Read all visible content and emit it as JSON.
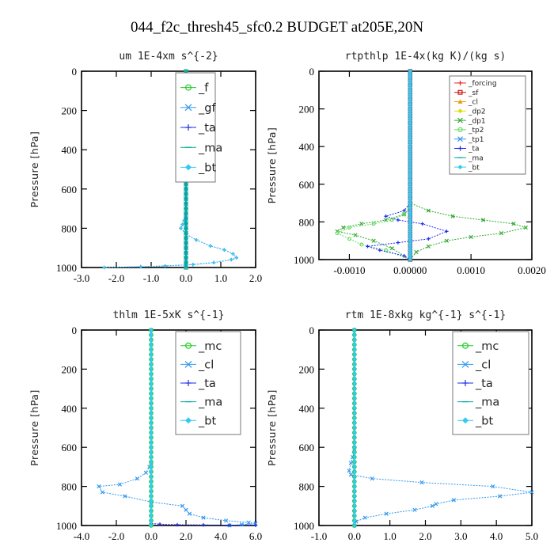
{
  "figure_title": "044_f2c_thresh45_sfc0.2  BUDGET at205E,20N",
  "chart_data": [
    {
      "type": "line",
      "title": "um  1E-4xm s^{-2}",
      "ylabel": "Pressure [hPa]",
      "xlim": [
        -3.0,
        2.0
      ],
      "ylim": [
        1000,
        0
      ],
      "xticks": [
        "-3.0",
        "-2.0",
        "-1.0",
        "0.0",
        "1.0",
        "2.0"
      ],
      "yticks": [
        "0",
        "200",
        "400",
        "600",
        "800",
        "1000"
      ],
      "legend_position": "top-right",
      "series": [
        {
          "name": "_f",
          "color": "#22cc22",
          "marker": "circle",
          "x": [
            0,
            0,
            0,
            0,
            0,
            0,
            0,
            0,
            0,
            0,
            0,
            0,
            0
          ],
          "y": [
            0,
            80,
            160,
            240,
            320,
            400,
            480,
            560,
            640,
            720,
            800,
            900,
            1000
          ]
        },
        {
          "name": "_gf",
          "color": "#3399ee",
          "marker": "x",
          "x": [
            0,
            0,
            0,
            0,
            0,
            0,
            0,
            0,
            0,
            0,
            0,
            0,
            0
          ],
          "y": [
            0,
            80,
            160,
            240,
            320,
            400,
            480,
            560,
            640,
            720,
            800,
            900,
            1000
          ]
        },
        {
          "name": "_ta",
          "color": "#1a2aee",
          "marker": "plus",
          "x": [
            0,
            0,
            0,
            -0.05,
            -0.1,
            -0.15,
            0.0,
            0.3,
            0.7,
            1.1,
            1.35,
            1.45,
            1.3,
            0.8,
            0.2,
            -0.6,
            -1.3,
            -2.35
          ],
          "y": [
            0,
            500,
            700,
            760,
            780,
            800,
            830,
            860,
            890,
            910,
            930,
            950,
            960,
            975,
            985,
            992,
            996,
            1000
          ]
        },
        {
          "name": "_ma",
          "color": "#00aa99",
          "marker": "dash",
          "x": [
            0,
            0,
            0,
            0,
            0,
            0
          ],
          "y": [
            0,
            200,
            400,
            600,
            800,
            1000
          ]
        },
        {
          "name": "_bt",
          "color": "#33ccee",
          "marker": "diamond",
          "x": [
            0,
            0,
            0,
            -0.05,
            -0.1,
            -0.15,
            0.0,
            0.3,
            0.7,
            1.1,
            1.35,
            1.45,
            1.3,
            0.8,
            0.2,
            -0.6,
            -1.3,
            -2.35
          ],
          "y": [
            0,
            500,
            700,
            760,
            780,
            800,
            830,
            860,
            890,
            910,
            930,
            950,
            960,
            975,
            985,
            992,
            996,
            1000
          ]
        }
      ]
    },
    {
      "type": "line",
      "title": "rtpthlp  1E-4x(kg K)/(kg s)",
      "ylabel": "Pressure [hPa]",
      "xlim": [
        -0.0015,
        0.002
      ],
      "ylim": [
        1000,
        0
      ],
      "xticks": [
        "-0.0010",
        "0.00000",
        "0.0010",
        "0.0020"
      ],
      "xtick_values": [
        -0.001,
        0.0,
        0.001,
        0.002
      ],
      "yticks": [
        "0",
        "200",
        "400",
        "600",
        "800",
        "1000"
      ],
      "legend_position": "top-right",
      "series": [
        {
          "name": "_forcing",
          "color": "#ee2222",
          "marker": "plus",
          "x": [
            0,
            0,
            0,
            0,
            0,
            0,
            0,
            0,
            0,
            0,
            0
          ],
          "y": [
            0,
            100,
            200,
            300,
            400,
            500,
            600,
            700,
            800,
            900,
            1000
          ]
        },
        {
          "name": "_sf",
          "color": "#cc1111",
          "marker": "square",
          "x": [
            0,
            0,
            0,
            0,
            0,
            0,
            0,
            0,
            0,
            0,
            0
          ],
          "y": [
            0,
            100,
            200,
            300,
            400,
            500,
            600,
            700,
            800,
            900,
            1000
          ]
        },
        {
          "name": "_cl",
          "color": "#ee9900",
          "marker": "triangle",
          "x": [
            0,
            0,
            0,
            0,
            0,
            0,
            0,
            0,
            0,
            0,
            0
          ],
          "y": [
            0,
            100,
            200,
            300,
            400,
            500,
            600,
            700,
            800,
            900,
            1000
          ]
        },
        {
          "name": "_dp2",
          "color": "#dddd00",
          "marker": "diamond",
          "x": [
            0,
            0,
            0,
            0,
            0,
            0,
            0,
            0,
            0,
            0,
            0
          ],
          "y": [
            0,
            100,
            200,
            300,
            400,
            500,
            600,
            700,
            800,
            900,
            1000
          ]
        },
        {
          "name": "_dp1",
          "color": "#33aa33",
          "marker": "x",
          "x": [
            0,
            0,
            -0.0001,
            -0.0004,
            -0.0008,
            -0.0011,
            -0.0012,
            -0.0009,
            -0.0006,
            -0.0003,
            0.0
          ],
          "y": [
            0,
            720,
            760,
            790,
            810,
            830,
            850,
            870,
            900,
            940,
            1000
          ]
        },
        {
          "name": "_tp2",
          "color": "#66dd66",
          "marker": "circle",
          "x": [
            0,
            0,
            -0.0001,
            -0.0003,
            -0.0006,
            -0.001,
            -0.0012,
            -0.001,
            -0.0008,
            -0.0004,
            0.0
          ],
          "y": [
            0,
            730,
            760,
            790,
            810,
            830,
            860,
            890,
            920,
            950,
            1000
          ]
        },
        {
          "name": "_tp1",
          "color": "#3399ee",
          "marker": "x",
          "x": [
            0,
            0,
            0,
            0,
            0,
            0,
            0,
            0,
            0,
            0,
            0
          ],
          "y": [
            0,
            100,
            200,
            300,
            400,
            500,
            600,
            700,
            800,
            900,
            1000
          ]
        },
        {
          "name": "_ta",
          "color": "#1a2aee",
          "marker": "plus",
          "x": [
            0,
            0,
            -0.0001,
            -0.0004,
            -0.0002,
            0.0002,
            0.0006,
            0.0003,
            -0.0002,
            -0.0007,
            -0.0005,
            -0.0001,
            0.0
          ],
          "y": [
            0,
            700,
            740,
            770,
            790,
            810,
            850,
            890,
            910,
            930,
            950,
            980,
            1000
          ]
        },
        {
          "name": "_ma",
          "color": "#00aa99",
          "marker": "dash",
          "x": [
            0,
            0,
            0,
            0,
            0,
            0
          ],
          "y": [
            0,
            200,
            400,
            600,
            800,
            1000
          ]
        },
        {
          "name": "_bt",
          "color": "#33ccee",
          "marker": "diamond",
          "x": [
            0,
            0,
            0,
            0,
            0,
            0
          ],
          "y": [
            0,
            200,
            400,
            600,
            800,
            1000
          ]
        },
        {
          "color": "#33aa33",
          "marker": "x",
          "x": [
            0,
            0,
            0.0003,
            0.0007,
            0.0012,
            0.0017,
            0.0019,
            0.0015,
            0.001,
            0.0006,
            0.0003,
            0.0001,
            0.0
          ],
          "y": [
            0,
            700,
            740,
            770,
            790,
            810,
            830,
            860,
            880,
            900,
            930,
            960,
            1000
          ]
        }
      ]
    },
    {
      "type": "line",
      "title": "thlm  1E-5xK s^{-1}",
      "ylabel": "Pressure [hPa]",
      "xlim": [
        -4.0,
        6.0
      ],
      "ylim": [
        1000,
        0
      ],
      "xticks": [
        "-4.0",
        "-2.0",
        "0.0",
        "2.0",
        "4.0",
        "6.0"
      ],
      "yticks": [
        "0",
        "200",
        "400",
        "600",
        "800",
        "1000"
      ],
      "legend_position": "top-right",
      "series": [
        {
          "name": "_mc",
          "color": "#22cc22",
          "marker": "circle",
          "x": [
            0,
            0,
            0,
            0,
            0,
            0,
            0,
            0,
            0,
            0,
            0,
            0,
            0
          ],
          "y": [
            0,
            80,
            160,
            240,
            320,
            400,
            480,
            560,
            640,
            720,
            800,
            900,
            1000
          ]
        },
        {
          "name": "_cl",
          "color": "#3399ee",
          "marker": "x",
          "x": [
            0,
            0,
            -0.1,
            -0.3,
            -0.8,
            -1.8,
            -3.0,
            -2.8,
            -1.5,
            0.0,
            1.8,
            2.0,
            2.2,
            3.0,
            4.3,
            5.6,
            6.0,
            5.2,
            4.5
          ],
          "y": [
            0,
            680,
            700,
            730,
            760,
            790,
            800,
            830,
            850,
            880,
            900,
            920,
            940,
            960,
            975,
            985,
            990,
            995,
            1000
          ]
        },
        {
          "name": "_ta",
          "color": "#1a2aee",
          "marker": "plus",
          "x": [
            0,
            0,
            0.5,
            1.5,
            3.0,
            4.5,
            6.0
          ],
          "y": [
            0,
            990,
            993,
            996,
            997,
            998,
            999
          ]
        },
        {
          "name": "_ma",
          "color": "#00aa99",
          "marker": "dash",
          "x": [
            0,
            0,
            0,
            0,
            0,
            0
          ],
          "y": [
            0,
            200,
            400,
            600,
            800,
            1000
          ]
        },
        {
          "name": "_bt",
          "color": "#33ccee",
          "marker": "diamond",
          "x": [
            0,
            0,
            0,
            0,
            0,
            0
          ],
          "y": [
            0,
            200,
            400,
            600,
            800,
            1000
          ]
        }
      ]
    },
    {
      "type": "line",
      "title": "rtm  1E-8xkg kg^{-1} s^{-1}",
      "ylabel": "Pressure [hPa]",
      "xlim": [
        -1.0,
        5.0
      ],
      "ylim": [
        1000,
        0
      ],
      "xticks": [
        "-1.0",
        "0.0",
        "1.0",
        "2.0",
        "3.0",
        "4.0",
        "5.0"
      ],
      "yticks": [
        "0",
        "200",
        "400",
        "600",
        "800",
        "1000"
      ],
      "legend_position": "top-right",
      "series": [
        {
          "name": "_mc",
          "color": "#22cc22",
          "marker": "circle",
          "x": [
            0,
            0,
            0,
            0,
            0,
            0,
            0,
            0,
            0,
            0,
            0,
            0,
            0
          ],
          "y": [
            0,
            80,
            160,
            240,
            320,
            400,
            480,
            560,
            640,
            720,
            800,
            900,
            1000
          ]
        },
        {
          "name": "_cl",
          "color": "#3399ee",
          "marker": "x",
          "x": [
            0,
            0,
            -0.05,
            -0.1,
            -0.15,
            -0.1,
            0.5,
            1.9,
            3.9,
            5.0,
            4.1,
            2.8,
            2.3,
            2.2,
            1.7,
            0.9,
            0.3,
            0.05,
            0.0
          ],
          "y": [
            0,
            620,
            650,
            680,
            720,
            740,
            760,
            780,
            800,
            830,
            850,
            870,
            890,
            900,
            920,
            940,
            960,
            980,
            1000
          ]
        },
        {
          "name": "_ta",
          "color": "#1a2aee",
          "marker": "plus",
          "x": [
            0,
            0,
            0,
            0
          ],
          "y": [
            0,
            900,
            990,
            1000
          ]
        },
        {
          "name": "_ma",
          "color": "#00aa99",
          "marker": "dash",
          "x": [
            0,
            0,
            0,
            0,
            0,
            0
          ],
          "y": [
            0,
            200,
            400,
            600,
            800,
            1000
          ]
        },
        {
          "name": "_bt",
          "color": "#33ccee",
          "marker": "diamond",
          "x": [
            0,
            0,
            0,
            0,
            0,
            0
          ],
          "y": [
            0,
            200,
            400,
            600,
            800,
            1000
          ]
        }
      ]
    }
  ]
}
